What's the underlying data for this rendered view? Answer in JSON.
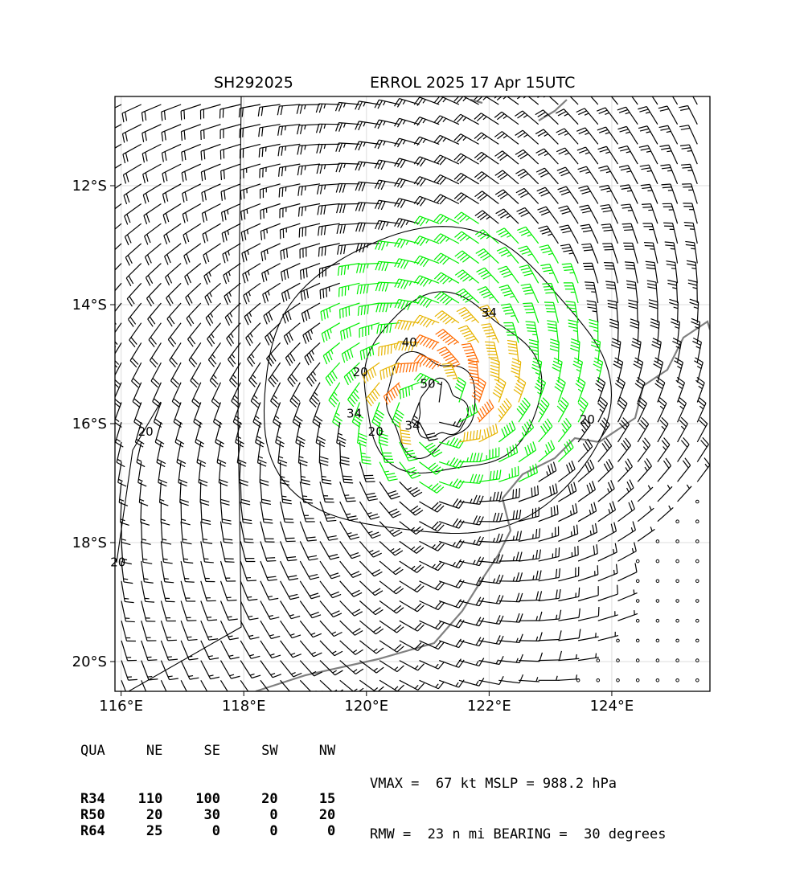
{
  "header": {
    "storm_id": "SH292025",
    "storm_title": "ERROL 2025 17 Apr 15UTC"
  },
  "map": {
    "lon_range": [
      115.9,
      125.6
    ],
    "lat_range": [
      -20.5,
      -10.5
    ],
    "lon_ticks": [
      {
        "value": 116,
        "label": "116°E"
      },
      {
        "value": 118,
        "label": "118°E"
      },
      {
        "value": 120,
        "label": "120°E"
      },
      {
        "value": 122,
        "label": "122°E"
      },
      {
        "value": 124,
        "label": "124°E"
      }
    ],
    "lat_ticks": [
      {
        "value": -12,
        "label": "12°S"
      },
      {
        "value": -14,
        "label": "14°S"
      },
      {
        "value": -16,
        "label": "16°S"
      },
      {
        "value": -18,
        "label": "18°S"
      },
      {
        "value": -20,
        "label": "20°S"
      }
    ],
    "grid": true,
    "storm_center": {
      "lon": 121.15,
      "lat": -15.65
    },
    "contour_labels": [
      {
        "text": "34",
        "lon": 122.0,
        "lat": -14.2
      },
      {
        "text": "20",
        "lon": 119.9,
        "lat": -15.2
      },
      {
        "text": "40",
        "lon": 120.7,
        "lat": -14.7
      },
      {
        "text": "50",
        "lon": 121.0,
        "lat": -15.4
      },
      {
        "text": "34",
        "lon": 120.75,
        "lat": -16.1
      },
      {
        "text": "34",
        "lon": 119.8,
        "lat": -15.9
      },
      {
        "text": "20",
        "lon": 120.15,
        "lat": -16.2
      },
      {
        "text": "20",
        "lon": 123.6,
        "lat": -16.0
      },
      {
        "text": "20",
        "lon": 116.4,
        "lat": -16.2
      },
      {
        "text": "20",
        "lon": 115.95,
        "lat": -18.4
      }
    ],
    "colors": {
      "calm_barb": "#000000",
      "r34_barb": "#00ee00",
      "r50_barb": "#e6b400",
      "r64_barb": "#ff6a00",
      "coastline": "#808080",
      "contour": "#000000",
      "gridline": "#dddddd"
    }
  },
  "wind_radii_table": {
    "header": [
      "QUA",
      "NE",
      "SE",
      "SW",
      "NW"
    ],
    "rows": [
      {
        "label": "R34",
        "values": [
          "110",
          "100",
          "20",
          "15"
        ]
      },
      {
        "label": "R50",
        "values": [
          "20",
          "30",
          "0",
          "20"
        ]
      },
      {
        "label": "R64",
        "values": [
          "25",
          "0",
          "0",
          "0"
        ]
      }
    ]
  },
  "stats": {
    "line1": "VMAX =  67 kt MSLP = 988.2 hPa",
    "line2": "RMW =  23 n mi BEARING =  30 degrees"
  }
}
